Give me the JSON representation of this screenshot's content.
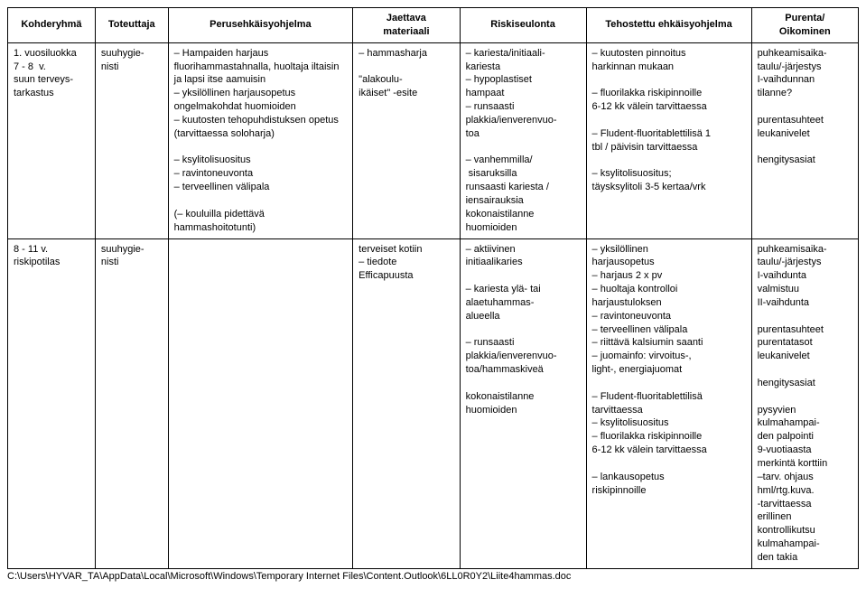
{
  "headers": {
    "kohderyhma": "Kohderyhmä",
    "toteuttaja": "Toteuttaja",
    "perus": "Perusehkäisyohjelma",
    "jaettava": "Jaettava\nmateriaali",
    "riski": "Riskiseulonta",
    "tehostettu": "Tehostettu ehkäisyohjelma",
    "purenta": "Purenta/\nOikominen"
  },
  "rows": [
    {
      "kohderyhma": "1. vuosiluokka\n7 - 8  v.\nsuun terveys-\ntarkastus",
      "toteuttaja": "suuhygie-\nnisti",
      "perus": "– Hampaiden harjaus\nfluorihammastahnalla, huoltaja iltaisin\nja lapsi itse aamuisin\n– yksilöllinen harjausopetus\nongelmakohdat huomioiden\n– kuutosten tehopuhdistuksen opetus\n(tarvittaessa soloharja)\n\n– ksylitolisuositus\n– ravintoneuvonta\n– terveellinen välipala\n\n(– kouluilla pidettävä\nhammashoitotunti)",
      "jaettava": "– hammasharja\n\n\"alakoulu-\nikäiset\" -esite",
      "riski": "– kariesta/initiaali-\nkariesta\n– hypoplastiset\nhampaat\n– runsaasti\nplakkia/ienverenvuo-\ntoa\n\n– vanhemmilla/\n sisaruksilla\nrunsaasti kariesta /\niensairauksia\nkokonaistilanne\nhuomioiden",
      "tehostettu": "– kuutosten pinnoitus\nharkinnan mukaan\n\n– fluorilakka riskipinnoille\n6-12 kk välein tarvittaessa\n\n– Fludent-fluoritablettilisä 1\ntbl / päivisin tarvittaessa\n\n– ksylitolisuositus;\ntäysksylitoli 3-5 kertaa/vrk",
      "purenta": "puhkeamisaika-\ntaulu/-järjestys\nI-vaihdunnan\ntilanne?\n\npurentasuhteet\nleukanivelet\n\nhengitysasiat"
    },
    {
      "kohderyhma": "8 - 11 v.\nriskipotilas",
      "toteuttaja": "suuhygie-\nnisti",
      "perus": "",
      "jaettava": "terveiset kotiin\n– tiedote\nEfficapuusta",
      "riski": "– aktiivinen\ninitiaalikaries\n\n– kariesta ylä- tai\nalaetuhammas-\nalueella\n\n– runsaasti\nplakkia/ienverenvuo-\ntoa/hammaskiveä\n\nkokonaistilanne\nhuomioiden",
      "tehostettu": "– yksilöllinen\nharjausopetus\n– harjaus 2 x pv\n– huoltaja kontrolloi\nharjaustuloksen\n– ravintoneuvonta\n– terveellinen välipala\n– riittävä kalsiumin saanti\n– juomainfo: virvoitus-,\nlight-, energiajuomat\n\n– Fludent-fluoritablettilisä\ntarvittaessa\n– ksylitolisuositus\n– fluorilakka riskipinnoille\n6-12 kk välein tarvittaessa\n\n– lankausopetus\nriskipinnoille",
      "purenta": "puhkeamisaika-\ntaulu/-järjestys\nI-vaihdunta\nvalmistuu\nII-vaihdunta\n\npurentasuhteet\npurentatasot\nleukanivelet\n\nhengitysasiat\n\npysyvien\nkulmahampai-\nden palpointi\n9-vuotiaasta\nmerkintä korttiin\n–tarv. ohjaus\nhml/rtg.kuva.\n-tarvittaessa\nerillinen\nkontrollikutsu\nkulmahampai-\nden takia"
    }
  ],
  "footer_path": "C:\\Users\\HYVAR_TA\\AppData\\Local\\Microsoft\\Windows\\Temporary Internet Files\\Content.Outlook\\6LL0R0Y2\\Liite4hammas.doc"
}
